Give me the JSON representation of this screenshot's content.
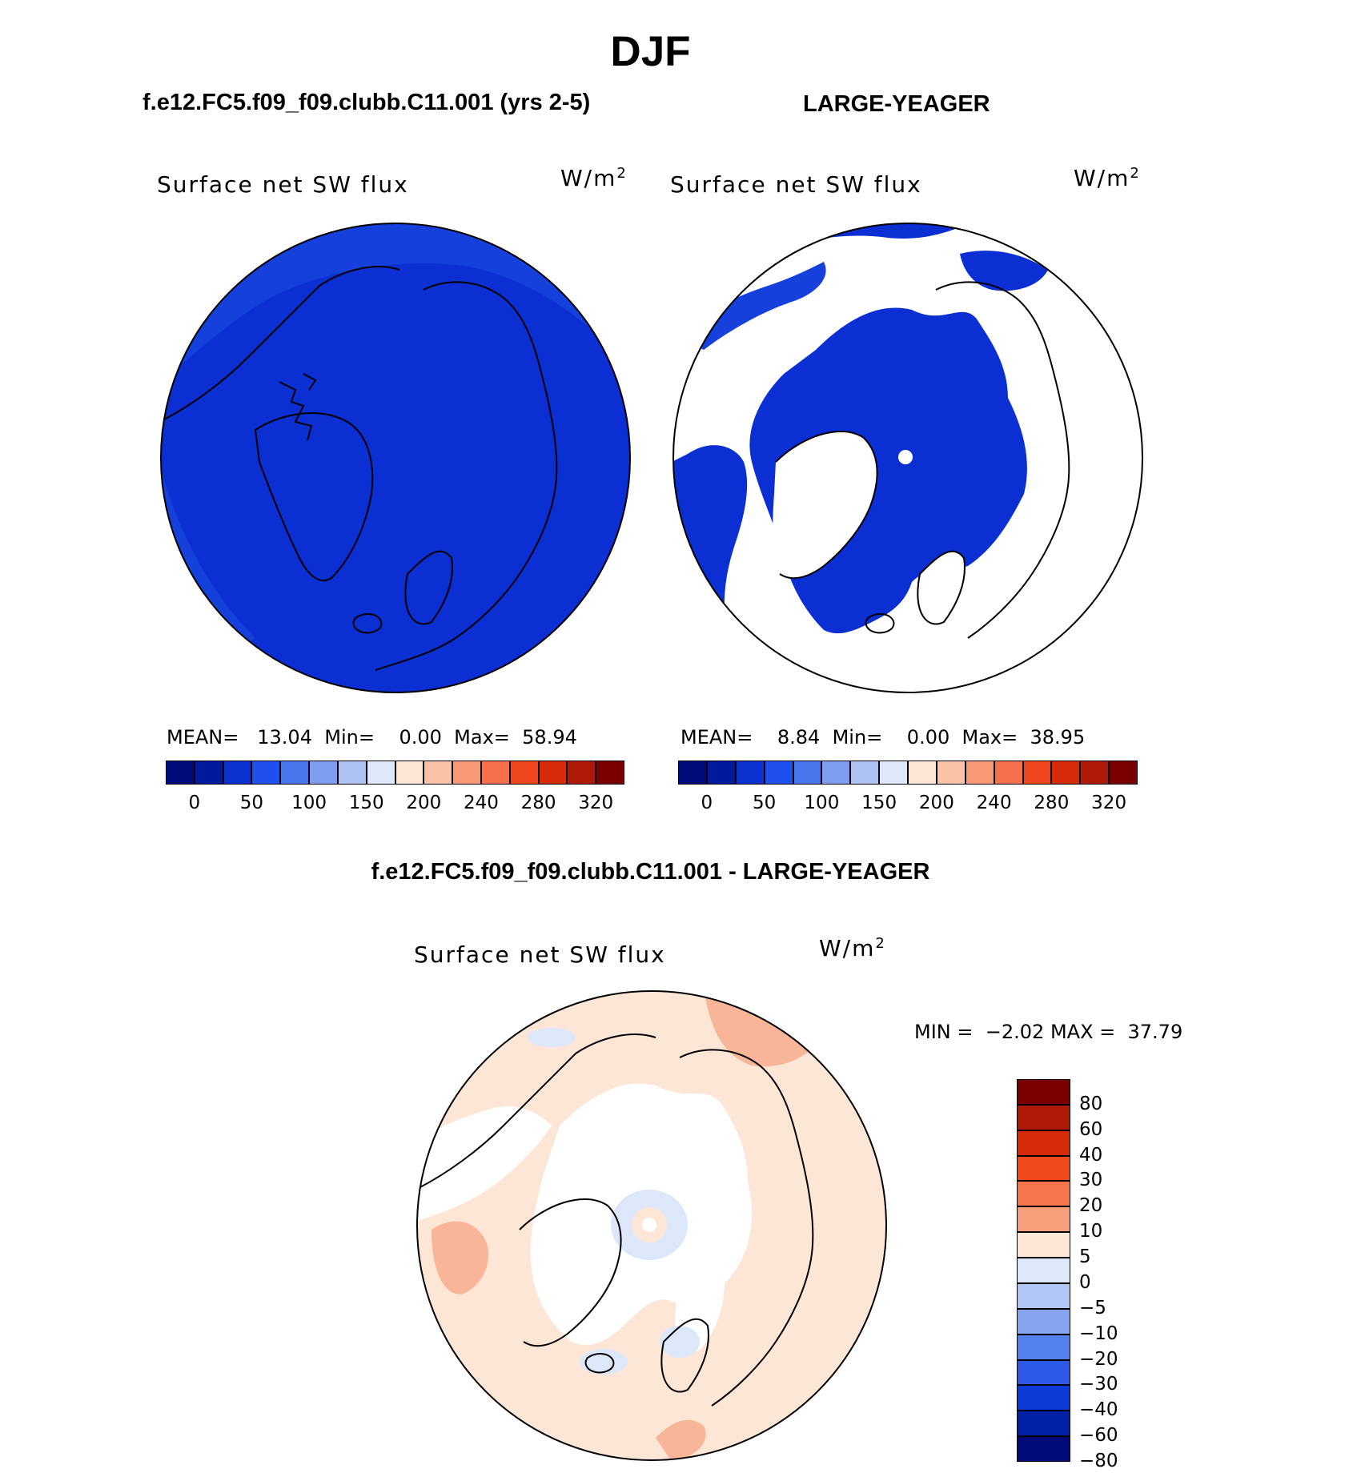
{
  "title": "DJF",
  "panels": [
    {
      "case_title": "f.e12.FC5.f09_f09.clubb.C11.001 (yrs 2-5)",
      "variable": "Surface net SW flux",
      "units_base": "W/m",
      "units_exp": "2",
      "stats": {
        "mean_label": "MEAN=",
        "mean": "13.04",
        "min_label": "Min=",
        "min": "0.00",
        "max_label": "Max=",
        "max": "58.94"
      }
    },
    {
      "case_title": "LARGE-YEAGER",
      "variable": "Surface net SW flux",
      "units_base": "W/m",
      "units_exp": "2",
      "stats": {
        "mean_label": "MEAN=",
        "mean": "8.84",
        "min_label": "Min=",
        "min": "0.00",
        "max_label": "Max=",
        "max": "38.95"
      }
    }
  ],
  "abs_colorbar": {
    "colors": [
      "#000a7a",
      "#001a9c",
      "#0b32d0",
      "#1f4fee",
      "#4a77f0",
      "#7d9df0",
      "#aec3f4",
      "#dde7fa",
      "#fde6d6",
      "#fbc3a6",
      "#f89a76",
      "#f6714b",
      "#f0471e",
      "#d62a08",
      "#ad1a05",
      "#7a0000"
    ],
    "labels": [
      "0",
      "50",
      "100",
      "150",
      "200",
      "240",
      "280",
      "320"
    ]
  },
  "diff": {
    "title": "f.e12.FC5.f09_f09.clubb.C11.001 - LARGE-YEAGER",
    "variable": "Surface net SW flux",
    "units_base": "W/m",
    "units_exp": "2",
    "minmax": {
      "min_label": "MIN =",
      "min": "−2.02",
      "max_label": "MAX =",
      "max": "37.79"
    },
    "colorbar": {
      "colors": [
        "#7a0000",
        "#ad1a05",
        "#d62a08",
        "#f34a1d",
        "#f6744b",
        "#f8a07c",
        "#fde6d6",
        "#dde7fa",
        "#b0c6f4",
        "#86a4f0",
        "#5581ee",
        "#2d5ae8",
        "#0c3ad6",
        "#0020a8",
        "#000a7a"
      ],
      "labels": [
        "80",
        "60",
        "40",
        "30",
        "20",
        "10",
        "5",
        "0",
        "−5",
        "−10",
        "−20",
        "−30",
        "−40",
        "−60",
        "−80"
      ]
    }
  },
  "map_colors": {
    "ocean_fill": "#0b2fd2",
    "ocean_shade": "#1540dc",
    "land_blank": "#ffffff",
    "diff_fill": "#fde6d6",
    "diff_pos": "#f8b597",
    "diff_neg": "#dde7fa",
    "outline": "#000000"
  }
}
